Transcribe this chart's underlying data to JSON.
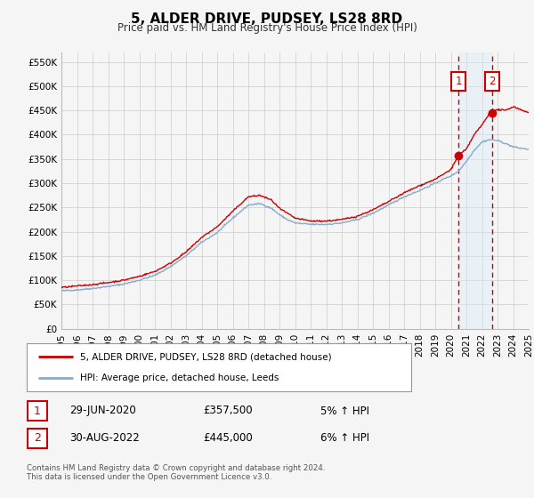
{
  "title": "5, ALDER DRIVE, PUDSEY, LS28 8RD",
  "subtitle": "Price paid vs. HM Land Registry's House Price Index (HPI)",
  "legend_label_1": "5, ALDER DRIVE, PUDSEY, LS28 8RD (detached house)",
  "legend_label_2": "HPI: Average price, detached house, Leeds",
  "annotation_1_date": "29-JUN-2020",
  "annotation_1_price": "£357,500",
  "annotation_1_hpi": "5% ↑ HPI",
  "annotation_2_date": "30-AUG-2022",
  "annotation_2_price": "£445,000",
  "annotation_2_hpi": "6% ↑ HPI",
  "footer": "Contains HM Land Registry data © Crown copyright and database right 2024.\nThis data is licensed under the Open Government Licence v3.0.",
  "color_price": "#cc0000",
  "color_hpi": "#88aacc",
  "color_shade": "#d8eaf8",
  "color_vline": "#cc0000",
  "ylim_min": 0,
  "ylim_max": 570000,
  "year_start": 1995,
  "year_end": 2025,
  "transaction_year_1": 2020.5,
  "transaction_year_2": 2022.67,
  "transaction_price_1": 357500,
  "transaction_price_2": 445000,
  "background_color": "#f5f5f5",
  "grid_color": "#cccccc",
  "hpi_anchors_x": [
    1995,
    1996,
    1997,
    1998,
    1999,
    2000,
    2001,
    2002,
    2003,
    2004,
    2005,
    2006,
    2007,
    2007.75,
    2008.5,
    2009,
    2009.5,
    2010,
    2011,
    2012,
    2013,
    2014,
    2015,
    2016,
    2017,
    2018,
    2019,
    2019.5,
    2020,
    2020.5,
    2021,
    2021.5,
    2022,
    2022.5,
    2023,
    2023.5,
    2024,
    2024.5,
    2025
  ],
  "hpi_anchors_y": [
    78000,
    80000,
    83000,
    87000,
    92000,
    100000,
    110000,
    128000,
    150000,
    178000,
    198000,
    228000,
    255000,
    258000,
    248000,
    235000,
    225000,
    218000,
    215000,
    215000,
    218000,
    225000,
    238000,
    255000,
    272000,
    285000,
    300000,
    308000,
    315000,
    325000,
    345000,
    368000,
    385000,
    390000,
    388000,
    382000,
    375000,
    372000,
    370000
  ],
  "price_anchors_x": [
    1995,
    1996,
    1997,
    1998,
    1999,
    2000,
    2001,
    2002,
    2003,
    2004,
    2005,
    2006,
    2007,
    2007.75,
    2008.5,
    2009,
    2009.5,
    2010,
    2011,
    2012,
    2013,
    2014,
    2015,
    2016,
    2017,
    2018,
    2019,
    2019.5,
    2020,
    2020.5,
    2021,
    2021.5,
    2022,
    2022.5,
    2022.67,
    2023,
    2023.5,
    2024,
    2024.5,
    2025
  ],
  "price_anchors_y": [
    85000,
    88000,
    91000,
    95000,
    100000,
    108000,
    118000,
    135000,
    158000,
    188000,
    210000,
    242000,
    272000,
    275000,
    265000,
    248000,
    238000,
    228000,
    222000,
    222000,
    225000,
    232000,
    245000,
    262000,
    280000,
    295000,
    308000,
    318000,
    328000,
    357500,
    370000,
    400000,
    420000,
    445000,
    445000,
    452000,
    450000,
    458000,
    452000,
    445000
  ]
}
